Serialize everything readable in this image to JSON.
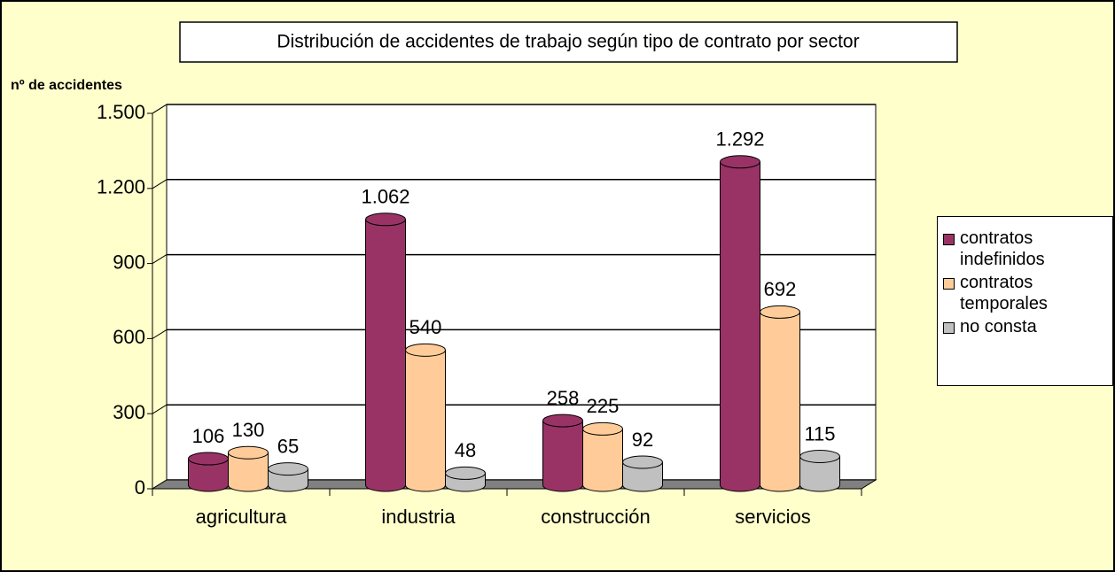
{
  "chart_data": {
    "type": "bar3d",
    "title": "Distribución de accidentes de trabajo según tipo de contrato por sector",
    "y_label": "nº de accidentes",
    "categories": [
      "agricultura",
      "industria",
      "construcción",
      "servicios"
    ],
    "series": [
      {
        "name": "contratos indefinidos",
        "color": "#993366",
        "values": [
          106,
          1062,
          258,
          1292
        ],
        "value_labels": [
          "106",
          "1.062",
          "258",
          "1.292"
        ]
      },
      {
        "name": "contratos temporales",
        "color": "#ffcc99",
        "values": [
          130,
          540,
          225,
          692
        ]
      },
      {
        "name": "no consta",
        "color": "#c0c0c0",
        "values": [
          65,
          48,
          92,
          115
        ]
      }
    ],
    "ylim": [
      0,
      1500
    ],
    "yticks": [
      0,
      300,
      600,
      900,
      {
        "value": 1200,
        "label": "1.200"
      },
      {
        "value": 1500,
        "label": "1.500"
      }
    ],
    "grid": true,
    "legend": "right"
  }
}
